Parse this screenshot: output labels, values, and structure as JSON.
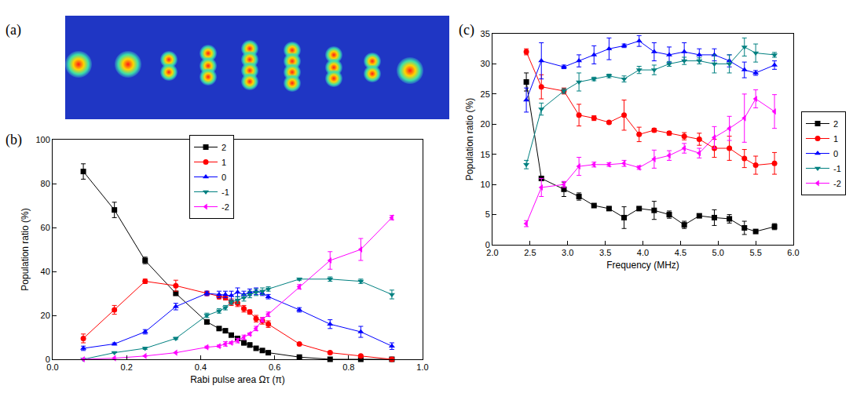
{
  "panels": {
    "a": {
      "label": "(a)"
    }
  },
  "chart_data": [
    {
      "label": "(b)",
      "type": "line",
      "x_label": "Rabi pulse area Ωτ (π)",
      "y_label": "Population ratio (%)",
      "x": [
        0.083,
        0.167,
        0.25,
        0.333,
        0.417,
        0.45,
        0.467,
        0.483,
        0.5,
        0.517,
        0.533,
        0.55,
        0.567,
        0.583,
        0.667,
        0.75,
        0.833,
        0.917
      ],
      "xlim": [
        0,
        1.0
      ],
      "xticks": [
        {
          "value": 0,
          "label": "0.0"
        },
        0.2,
        0.4,
        0.6,
        0.8,
        {
          "value": 1.0,
          "label": "1.0"
        }
      ],
      "ylim": [
        0,
        100
      ],
      "yticks": [
        0,
        20,
        40,
        60,
        80,
        100
      ],
      "grid": false,
      "legend": "upper center",
      "series": [
        {
          "name": "2",
          "color": "#000000",
          "marker": "square",
          "line_style": "solid",
          "values": [
            85.5,
            68,
            45,
            30,
            17,
            14,
            13,
            11,
            9.5,
            7.5,
            6.5,
            5,
            4,
            3,
            1,
            0,
            0,
            0
          ],
          "errors": [
            3.5,
            3.5,
            1.5,
            0.5,
            0.5,
            0.5,
            0.5,
            0.5,
            1,
            1,
            1,
            0.5,
            0.5,
            0.3,
            0.2,
            0,
            0,
            0
          ]
        },
        {
          "name": "1",
          "color": "#ff0000",
          "marker": "circle",
          "line_style": "solid",
          "values": [
            9.5,
            22.5,
            35.5,
            33.5,
            30,
            28.5,
            28,
            26,
            25.5,
            23,
            21.5,
            18.5,
            17.5,
            16,
            7,
            3,
            1.5,
            0
          ],
          "errors": [
            2,
            2,
            1,
            2.5,
            1,
            1,
            1,
            1.5,
            1.5,
            1.5,
            1,
            1.5,
            1.5,
            1.5,
            0.3,
            0.5,
            0.5,
            0
          ]
        },
        {
          "name": "0",
          "color": "#0000ff",
          "marker": "triangle-up",
          "line_style": "solid",
          "values": [
            5,
            7,
            12.5,
            24,
            30,
            29.5,
            29.5,
            29,
            30.5,
            29.5,
            30.5,
            31,
            30,
            28.5,
            22.5,
            16,
            12.5,
            6
          ],
          "errors": [
            1,
            0.5,
            1,
            1.5,
            1,
            1.5,
            1.5,
            2,
            2,
            1.5,
            1.5,
            1.5,
            1,
            1,
            1,
            2,
            2.5,
            1.5
          ]
        },
        {
          "name": "-1",
          "color": "#008080",
          "marker": "triangle-down",
          "line_style": "solid",
          "values": [
            0,
            3,
            5,
            9.5,
            20,
            22,
            23.5,
            26,
            27,
            28,
            29.5,
            30.5,
            31,
            32,
            36.5,
            36.5,
            35.5,
            29.5
          ],
          "errors": [
            0,
            0,
            0.5,
            0.5,
            1,
            1,
            1,
            1,
            1.5,
            1.5,
            1.5,
            1.5,
            1.5,
            1,
            0.5,
            1,
            1,
            2
          ]
        },
        {
          "name": "-2",
          "color": "#ff00ff",
          "marker": "triangle-left",
          "line_style": "solid",
          "values": [
            0,
            0.5,
            1.5,
            3,
            5.5,
            6,
            7,
            7.5,
            8.5,
            10,
            11.5,
            14,
            18,
            20.5,
            33,
            45,
            50,
            64.5
          ],
          "errors": [
            0,
            0,
            0,
            0,
            0.5,
            0.5,
            1,
            0.5,
            1,
            1,
            0.5,
            1,
            1,
            1,
            1,
            4,
            5,
            1
          ]
        }
      ]
    },
    {
      "label": "(c)",
      "type": "line",
      "x_label": "Frequency (MHz)",
      "y_label": "Population ratio (%)",
      "x": [
        2.45,
        2.65,
        2.95,
        3.15,
        3.35,
        3.55,
        3.75,
        3.95,
        4.15,
        4.35,
        4.55,
        4.75,
        4.95,
        5.15,
        5.35,
        5.5,
        5.75
      ],
      "xlim": [
        2.0,
        6.0
      ],
      "xticks": [
        {
          "value": 2,
          "label": "2.0"
        },
        2.5,
        {
          "value": 3,
          "label": "3.0"
        },
        3.5,
        {
          "value": 4,
          "label": "4.0"
        },
        4.5,
        {
          "value": 5,
          "label": "5.0"
        },
        5.5,
        {
          "value": 6,
          "label": "6.0"
        }
      ],
      "ylim": [
        0,
        35
      ],
      "yticks": [
        0,
        5,
        10,
        15,
        20,
        25,
        30,
        35
      ],
      "grid": false,
      "legend": "right",
      "series": [
        {
          "name": "2",
          "color": "#000000",
          "marker": "square",
          "line_style": "solid",
          "values": [
            27,
            11,
            9.2,
            8,
            6.5,
            6,
            4.5,
            6,
            5.7,
            5,
            3.3,
            4.8,
            4.5,
            4.3,
            2.8,
            2.2,
            3
          ],
          "errors": [
            1.5,
            0.3,
            1.2,
            0.6,
            0.2,
            0.2,
            1.8,
            0.2,
            1.5,
            0.6,
            0.6,
            0.3,
            1.3,
            0.7,
            1.1,
            0.2,
            0.5
          ]
        },
        {
          "name": "1",
          "color": "#ff0000",
          "marker": "circle",
          "line_style": "solid",
          "values": [
            32,
            26.2,
            25.5,
            21.5,
            21,
            20.3,
            21.5,
            18.3,
            19,
            18.5,
            18,
            17.5,
            16,
            16,
            14.3,
            13.2,
            13.5
          ],
          "errors": [
            0.5,
            2,
            0.5,
            1.8,
            0.4,
            0.2,
            2.5,
            1.2,
            0.3,
            0.3,
            0.6,
            1,
            1.5,
            2,
            1.5,
            1.5,
            1.8
          ]
        },
        {
          "name": "0",
          "color": "#0000ff",
          "marker": "triangle-up",
          "line_style": "solid",
          "values": [
            24,
            30.5,
            29.5,
            30.5,
            31.5,
            32.5,
            33,
            33.8,
            32,
            31.5,
            32,
            31.5,
            31.5,
            30.5,
            29,
            28.5,
            29.8
          ],
          "errors": [
            2,
            3,
            0.3,
            1,
            1.5,
            1.8,
            0.3,
            0.9,
            1.5,
            1.3,
            1.5,
            1,
            1,
            1,
            1.3,
            0.4,
            0.7
          ]
        },
        {
          "name": "-1",
          "color": "#008080",
          "marker": "triangle-down",
          "line_style": "solid",
          "values": [
            13.3,
            22.5,
            25.5,
            27,
            27.5,
            28,
            27.5,
            29,
            29,
            30,
            30.5,
            30.5,
            30,
            30,
            32.8,
            31.8,
            31.5
          ],
          "errors": [
            0.7,
            1,
            0.4,
            1.5,
            0.3,
            0.3,
            0.5,
            0.6,
            0.8,
            0.4,
            0.6,
            0.5,
            1.5,
            1.5,
            1.5,
            1.5,
            0.4
          ]
        },
        {
          "name": "-2",
          "color": "#ff00ff",
          "marker": "triangle-left",
          "line_style": "solid",
          "values": [
            3.5,
            9.5,
            10,
            13,
            13.3,
            13.3,
            13.5,
            12.8,
            14.2,
            14.8,
            16,
            15.2,
            17.8,
            19.3,
            21,
            24.2,
            22.1
          ],
          "errors": [
            0.5,
            1.5,
            0.5,
            1.5,
            0.4,
            0.3,
            0.5,
            0.3,
            1.5,
            0.8,
            0.8,
            0.8,
            1.8,
            2,
            4,
            1.5,
            2.8
          ]
        }
      ]
    }
  ]
}
